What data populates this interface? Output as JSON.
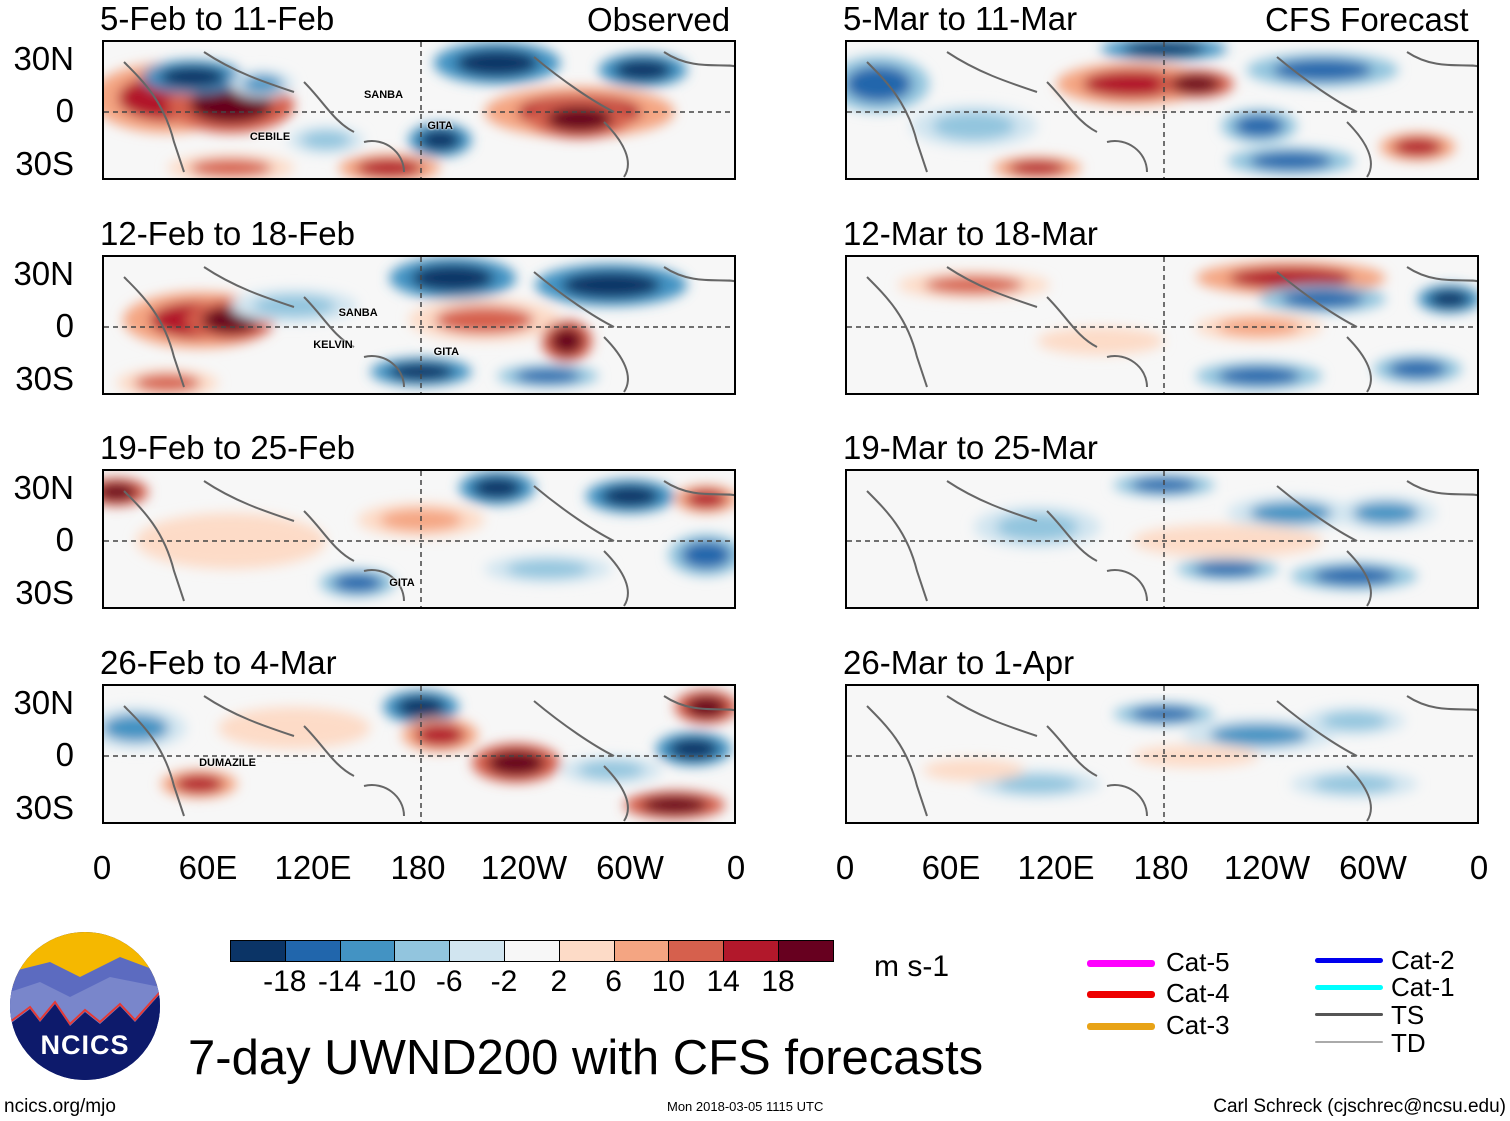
{
  "title": "7-day UWND200 with CFS forecasts",
  "units": "m s-1",
  "left_header": "Observed",
  "right_header": "CFS Forecast",
  "observed_panels": [
    {
      "label": "5-Feb to 11-Feb",
      "storms": [
        "SANBA",
        "CEBILE",
        "GITA"
      ]
    },
    {
      "label": "12-Feb to 18-Feb",
      "storms": [
        "SANBA",
        "KELVIN",
        "GITA"
      ]
    },
    {
      "label": "19-Feb to 25-Feb",
      "storms": [
        "GITA"
      ]
    },
    {
      "label": "26-Feb to 4-Mar",
      "storms": [
        "DUMAZILE"
      ]
    }
  ],
  "forecast_panels": [
    {
      "label": "5-Mar to 11-Mar"
    },
    {
      "label": "12-Mar to 18-Mar"
    },
    {
      "label": "19-Mar to 25-Mar"
    },
    {
      "label": "26-Mar to 1-Apr"
    }
  ],
  "lat_labels": [
    "30N",
    "0",
    "30S"
  ],
  "lon_labels": [
    "0",
    "60E",
    "120E",
    "180",
    "120W",
    "60W",
    "0"
  ],
  "colorbar": {
    "colors": [
      "#0b3466",
      "#2166ac",
      "#4393c3",
      "#92c5de",
      "#d1e5f0",
      "#f7f7f7",
      "#fddbc7",
      "#f4a582",
      "#d6604d",
      "#b2182b",
      "#67001f"
    ],
    "labels": [
      "-18",
      "-14",
      "-10",
      "-6",
      "-2",
      "2",
      "6",
      "10",
      "14",
      "18"
    ]
  },
  "legend": [
    {
      "label": "Cat-5",
      "color": "#ff00ff"
    },
    {
      "label": "Cat-4",
      "color": "#ee0000"
    },
    {
      "label": "Cat-3",
      "color": "#e8a317"
    },
    {
      "label": "Cat-2",
      "color": "#0000ee"
    },
    {
      "label": "Cat-1",
      "color": "#00ffff"
    },
    {
      "label": "TS",
      "color": "#555555"
    },
    {
      "label": "TD",
      "color": "#aaaaaa"
    }
  ],
  "logo_text": "NCICS",
  "footer": {
    "left": "ncics.org/mjo",
    "center": "Mon 2018-03-05 1115 UTC",
    "right": "Carl Schreck (cjschrec@ncsu.edu)"
  }
}
